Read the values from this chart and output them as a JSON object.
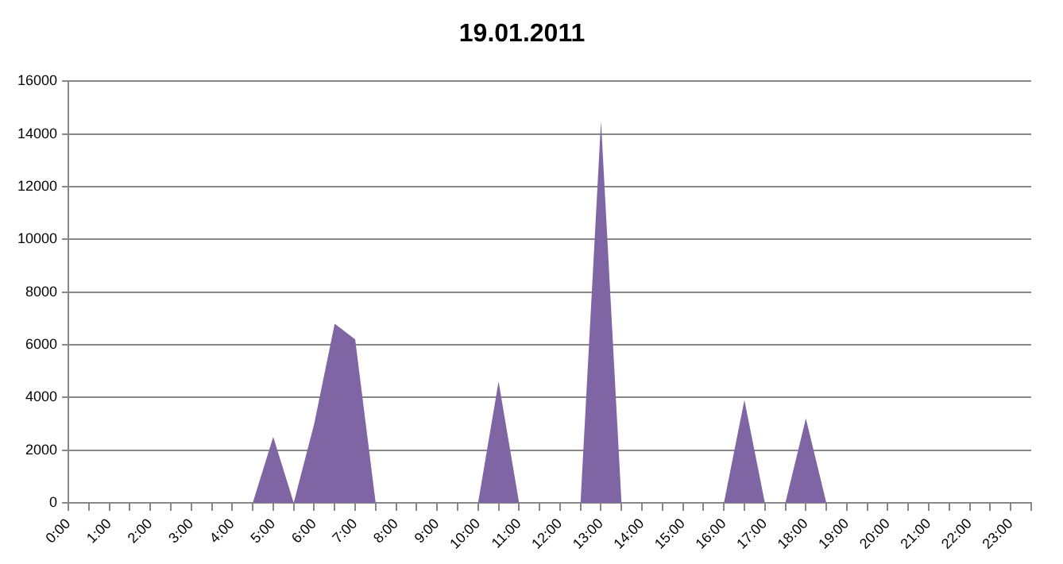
{
  "chart_data": {
    "type": "area",
    "title": "19.01.2011",
    "categories": [
      "0:00",
      null,
      "1:00",
      null,
      "2:00",
      null,
      "3:00",
      null,
      "4:00",
      null,
      "5:00",
      null,
      "6:00",
      null,
      "7:00",
      null,
      "8:00",
      null,
      "9:00",
      null,
      "10:00",
      null,
      "11:00",
      null,
      "12:00",
      null,
      "13:00",
      null,
      "14:00",
      null,
      "15:00",
      null,
      "16:00",
      null,
      "17:00",
      null,
      "18:00",
      null,
      "19:00",
      null,
      "20:00",
      null,
      "21:00",
      null,
      "22:00",
      null,
      "23:00",
      null
    ],
    "values": [
      0,
      0,
      0,
      0,
      0,
      0,
      0,
      0,
      0,
      0,
      2500,
      0,
      3000,
      6800,
      6200,
      0,
      0,
      0,
      0,
      0,
      0,
      4600,
      0,
      0,
      0,
      0,
      14500,
      0,
      0,
      0,
      0,
      0,
      0,
      3900,
      0,
      0,
      3200,
      0,
      0,
      0,
      0,
      0,
      0,
      0,
      0,
      0,
      0,
      0
    ],
    "color": "#7f65a3",
    "ylim": [
      0,
      16000
    ],
    "yticks": [
      0,
      2000,
      4000,
      6000,
      8000,
      10000,
      12000,
      14000,
      16000
    ],
    "grid": "y"
  }
}
